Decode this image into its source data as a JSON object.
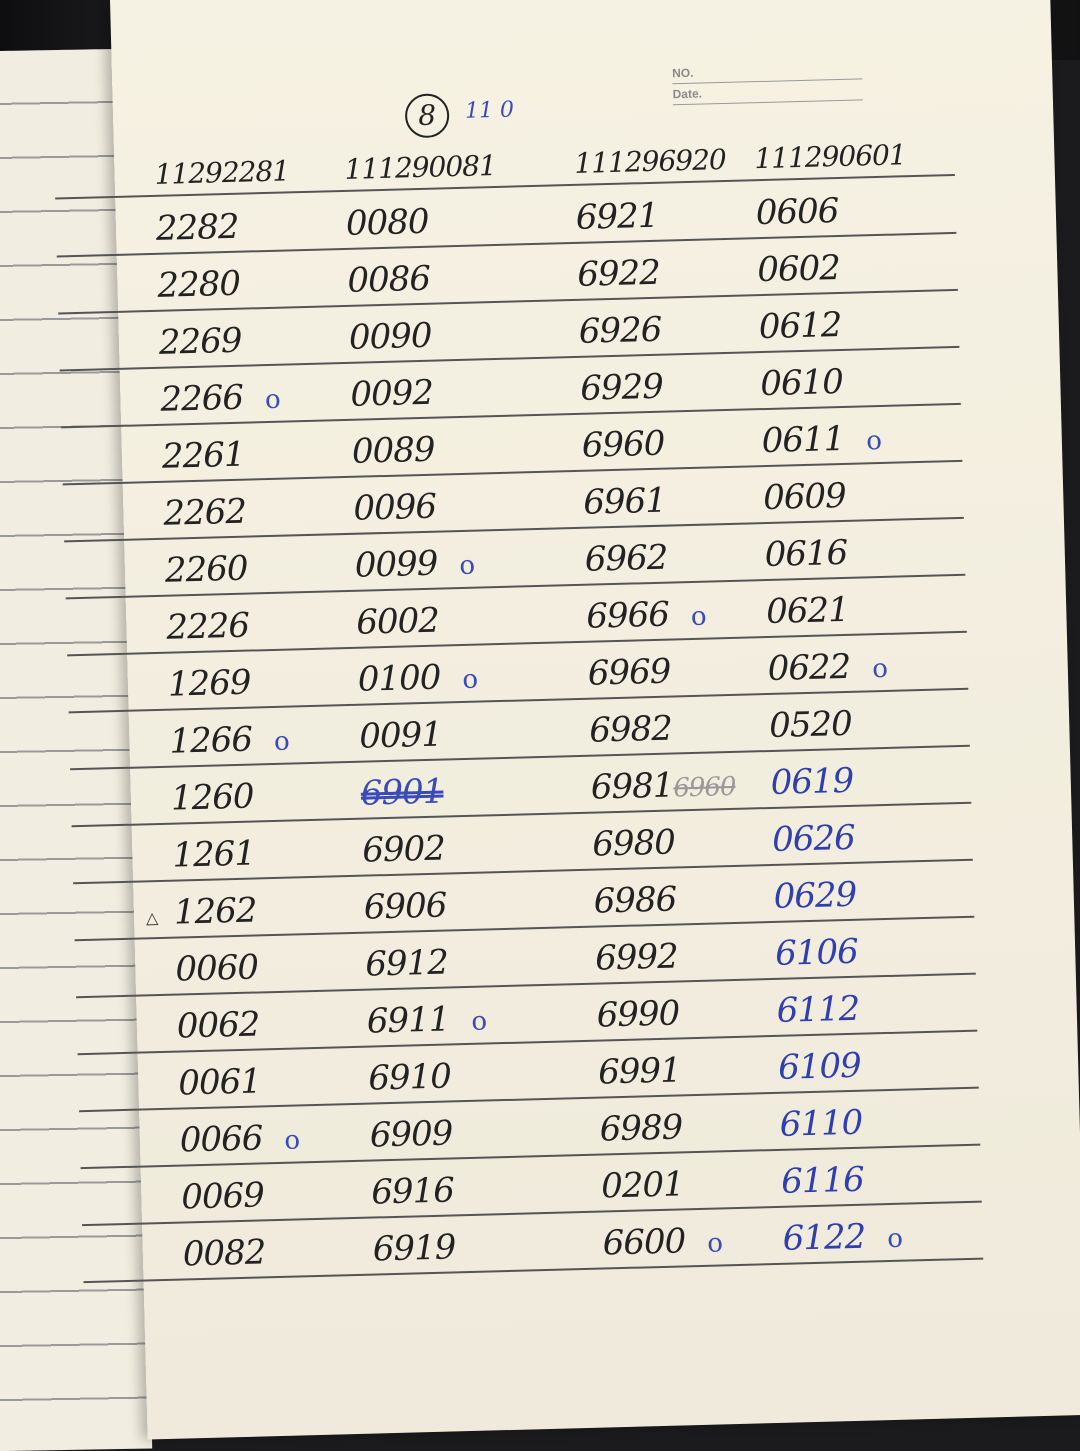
{
  "header": {
    "circled_number": "8",
    "note": "11 0",
    "no_label": "NO.",
    "date_label": "Date."
  },
  "columns": [
    "11292281",
    "111290081",
    "111296920",
    "111290601"
  ],
  "rows": [
    [
      {
        "v": "2282"
      },
      {
        "v": "0080"
      },
      {
        "v": "6921"
      },
      {
        "v": "0606"
      }
    ],
    [
      {
        "v": "2280"
      },
      {
        "v": "0086"
      },
      {
        "v": "6922"
      },
      {
        "v": "0602"
      }
    ],
    [
      {
        "v": "2269"
      },
      {
        "v": "0090"
      },
      {
        "v": "6926"
      },
      {
        "v": "0612"
      }
    ],
    [
      {
        "v": "2266",
        "mark": "o"
      },
      {
        "v": "0092"
      },
      {
        "v": "6929"
      },
      {
        "v": "0610"
      }
    ],
    [
      {
        "v": "2261"
      },
      {
        "v": "0089"
      },
      {
        "v": "6960"
      },
      {
        "v": "0611",
        "mark": "o"
      }
    ],
    [
      {
        "v": "2262"
      },
      {
        "v": "0096"
      },
      {
        "v": "6961"
      },
      {
        "v": "0609"
      }
    ],
    [
      {
        "v": "2260"
      },
      {
        "v": "0099",
        "mark": "o"
      },
      {
        "v": "6962"
      },
      {
        "v": "0616"
      }
    ],
    [
      {
        "v": "2226"
      },
      {
        "v": "6002"
      },
      {
        "v": "6966",
        "mark": "o"
      },
      {
        "v": "0621"
      }
    ],
    [
      {
        "v": "1269"
      },
      {
        "v": "0100",
        "mark": "o"
      },
      {
        "v": "6969"
      },
      {
        "v": "0622",
        "mark": "o"
      }
    ],
    [
      {
        "v": "1266",
        "mark": "o"
      },
      {
        "v": "0091"
      },
      {
        "v": "6982"
      },
      {
        "v": "0520"
      }
    ],
    [
      {
        "v": "1260"
      },
      {
        "v": "6901",
        "crossed": true
      },
      {
        "v": "6981",
        "struck": "6960"
      },
      {
        "v": "0619",
        "blue": true
      }
    ],
    [
      {
        "v": "1261"
      },
      {
        "v": "6902"
      },
      {
        "v": "6980"
      },
      {
        "v": "0626",
        "blue": true
      }
    ],
    [
      {
        "v": "1262",
        "triangle": "△"
      },
      {
        "v": "6906"
      },
      {
        "v": "6986"
      },
      {
        "v": "0629",
        "blue": true
      }
    ],
    [
      {
        "v": "0060"
      },
      {
        "v": "6912"
      },
      {
        "v": "6992"
      },
      {
        "v": "6106",
        "blue": true
      }
    ],
    [
      {
        "v": "0062"
      },
      {
        "v": "6911",
        "mark": "o"
      },
      {
        "v": "6990"
      },
      {
        "v": "6112",
        "blue": true
      }
    ],
    [
      {
        "v": "0061"
      },
      {
        "v": "6910"
      },
      {
        "v": "6991"
      },
      {
        "v": "6109",
        "blue": true
      }
    ],
    [
      {
        "v": "0066",
        "mark": "o"
      },
      {
        "v": "6909"
      },
      {
        "v": "6989"
      },
      {
        "v": "6110",
        "blue": true
      }
    ],
    [
      {
        "v": "0069"
      },
      {
        "v": "6916"
      },
      {
        "v": "0201"
      },
      {
        "v": "6116",
        "blue": true
      }
    ],
    [
      {
        "v": "0082"
      },
      {
        "v": "6919"
      },
      {
        "v": "6600",
        "mark": "o"
      },
      {
        "v": "6122",
        "blue": true,
        "mark": "o"
      }
    ]
  ],
  "colors": {
    "ink_black": "#222222",
    "ink_blue": "#2f3fae",
    "paper": "#f6f2e3"
  }
}
